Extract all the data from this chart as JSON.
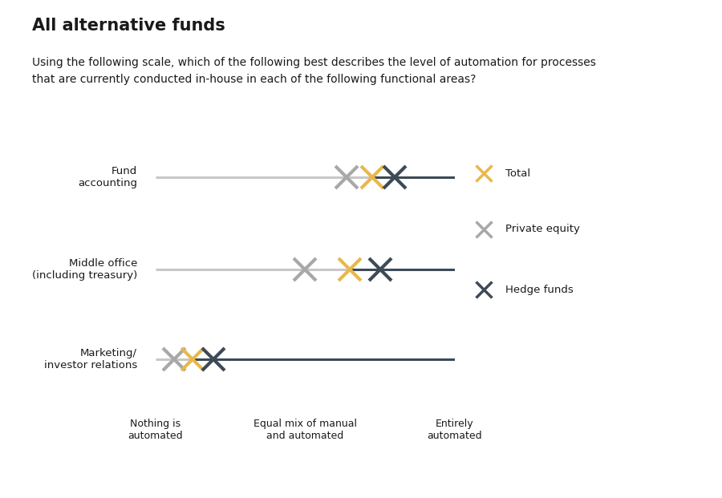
{
  "title": "All alternative funds",
  "subtitle": "Using the following scale, which of the following best describes the level of automation for processes\nthat are currently conducted in-house in each of the following functional areas?",
  "title_fontsize": 15,
  "subtitle_fontsize": 10,
  "background_color": "#ffffff",
  "x_min": 1,
  "x_max": 5,
  "x_ticks": [
    1,
    3,
    5
  ],
  "x_tick_labels": [
    "Nothing is\nautomated",
    "Equal mix of manual\nand automated",
    "Entirely\nautomated"
  ],
  "rows": [
    {
      "label": "Fund\naccounting",
      "private_equity": 3.55,
      "total": 3.9,
      "hedge_funds": 4.2
    },
    {
      "label": "Middle office\n(including treasury)",
      "private_equity": 3.0,
      "total": 3.6,
      "hedge_funds": 4.0
    },
    {
      "label": "Marketing/\ninvestor relations",
      "private_equity": 1.25,
      "total": 1.5,
      "hedge_funds": 1.78
    }
  ],
  "color_total": "#E8B84B",
  "color_private_equity": "#A8A8A8",
  "color_hedge_funds": "#3D4A57",
  "color_line_light": "#C8C8C8",
  "color_line_dark": "#3D4A57",
  "legend_labels": [
    "Total",
    "Private equity",
    "Hedge funds"
  ],
  "marker_size": 20,
  "marker_linewidth": 3.0
}
